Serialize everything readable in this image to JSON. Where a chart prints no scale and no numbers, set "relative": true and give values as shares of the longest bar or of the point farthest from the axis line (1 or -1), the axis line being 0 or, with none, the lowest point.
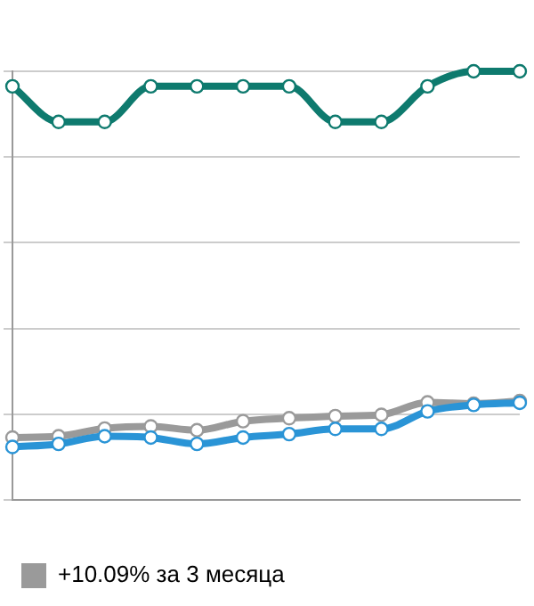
{
  "chart_data": {
    "type": "line",
    "relative": true,
    "categories": [
      null,
      null,
      null,
      null,
      null,
      null,
      null,
      null,
      null,
      null,
      null,
      null
    ],
    "series": [
      {
        "color": "#0e7a6e",
        "values": [
          0.965,
          0.882,
          0.882,
          0.965,
          0.965,
          0.965,
          0.965,
          0.882,
          0.882,
          0.965,
          1,
          1
        ]
      },
      {
        "name": "+10.09% за 3 месяца",
        "color": "#9a9a9a",
        "values": [
          0.146,
          0.149,
          0.167,
          0.172,
          0.163,
          0.184,
          0.191,
          0.196,
          0.199,
          0.228,
          0.225,
          0.231
        ]
      },
      {
        "color": "#2a94d6",
        "values": [
          0.124,
          0.131,
          0.149,
          0.146,
          0.131,
          0.146,
          0.154,
          0.166,
          0.166,
          0.207,
          0.222,
          0.227
        ]
      }
    ],
    "grid": "y",
    "legend": "bottom",
    "marker": "circle",
    "line_style": "solid"
  }
}
